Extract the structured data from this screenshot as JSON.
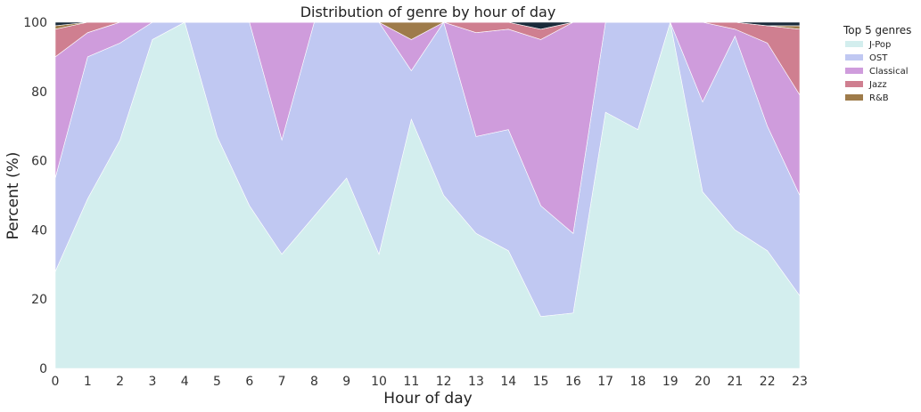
{
  "chart_data": {
    "type": "area",
    "stacked": true,
    "title": "Distribution of genre by hour of day",
    "xlabel": "Hour of day",
    "ylabel": "Percent (%)",
    "ylim": [
      0,
      100
    ],
    "xlim": [
      0,
      23
    ],
    "yticks": [
      0,
      20,
      40,
      60,
      80,
      100
    ],
    "grid": false,
    "legend_title": "Top 5 genres",
    "legend_position": "outside-top-right",
    "x": [
      0,
      1,
      2,
      3,
      4,
      5,
      6,
      7,
      8,
      9,
      10,
      11,
      12,
      13,
      14,
      15,
      16,
      17,
      18,
      19,
      20,
      21,
      22,
      23
    ],
    "series": [
      {
        "name": "J-Pop",
        "color": "#d3eeee",
        "values": [
          28,
          49,
          66,
          95,
          100,
          67,
          47,
          33,
          44,
          55,
          33,
          72,
          50,
          39,
          34,
          15,
          16,
          74,
          69,
          100,
          51,
          40,
          34,
          21
        ]
      },
      {
        "name": "OST",
        "color": "#c0c8f2",
        "values": [
          27,
          41,
          28,
          5,
          0,
          33,
          53,
          33,
          56,
          45,
          67,
          14,
          50,
          28,
          35,
          32,
          23,
          26,
          31,
          0,
          26,
          56,
          36,
          29
        ]
      },
      {
        "name": "Classical",
        "color": "#cf9cdc",
        "values": [
          35,
          7,
          6,
          0,
          0,
          0,
          0,
          34,
          0,
          0,
          0,
          9,
          0,
          30,
          29,
          48,
          61,
          0,
          0,
          0,
          23,
          2,
          24,
          29
        ]
      },
      {
        "name": "Jazz",
        "color": "#cf7f90",
        "values": [
          8,
          3,
          0,
          0,
          0,
          0,
          0,
          0,
          0,
          0,
          0,
          0,
          0,
          3,
          2,
          3,
          0,
          0,
          0,
          0,
          0,
          2,
          5,
          19
        ]
      },
      {
        "name": "R&B",
        "color": "#9e7b4a",
        "values": [
          1,
          0,
          0,
          0,
          0,
          0,
          0,
          0,
          0,
          0,
          0,
          5,
          0,
          0,
          0,
          0,
          0,
          0,
          0,
          0,
          0,
          0,
          0,
          1
        ]
      },
      {
        "color": "#1a2a3a",
        "values": [
          1,
          0,
          0,
          0,
          0,
          0,
          0,
          0,
          0,
          0,
          0,
          0,
          0,
          0,
          0,
          2,
          0,
          0,
          0,
          0,
          0,
          0,
          1,
          1
        ]
      }
    ]
  }
}
